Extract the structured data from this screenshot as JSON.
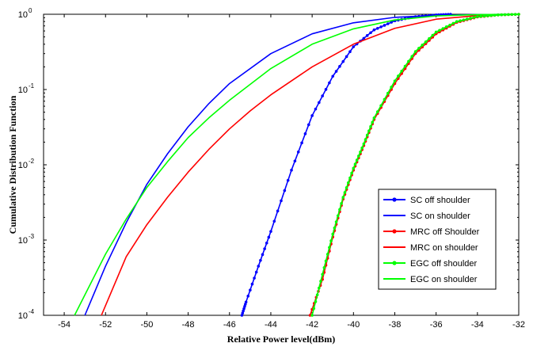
{
  "chart_data": {
    "type": "line",
    "xlabel": "Relative Power level(dBm)",
    "ylabel": "Cumulative Distribution Function",
    "xlim": [
      -55,
      -32
    ],
    "ylim": [
      0.0001,
      1
    ],
    "yscale": "log",
    "x_ticks": [
      -54,
      -52,
      -50,
      -48,
      -46,
      -44,
      -42,
      -40,
      -38,
      -36,
      -34,
      -32
    ],
    "y_ticks": [
      0.0001,
      0.001,
      0.01,
      0.1,
      1
    ],
    "y_tick_labels": [
      {
        "base": "10",
        "exp": "-4"
      },
      {
        "base": "10",
        "exp": "-3"
      },
      {
        "base": "10",
        "exp": "-2"
      },
      {
        "base": "10",
        "exp": "-1"
      },
      {
        "base": "10",
        "exp": "0"
      }
    ],
    "grid": false,
    "legend_position": "lower-right",
    "series": [
      {
        "name": "SC off shoulder",
        "color": "#0000ff",
        "marker": "dot",
        "x": [
          -45.4,
          -45.2,
          -44.6,
          -44.0,
          -43.0,
          -42.0,
          -41.0,
          -40.0,
          -39.0,
          -38.0,
          -37.0,
          -36.0,
          -35.3
        ],
        "y": [
          0.0001,
          0.00015,
          0.00045,
          0.0013,
          0.0085,
          0.045,
          0.15,
          0.37,
          0.62,
          0.82,
          0.93,
          0.98,
          1.0
        ]
      },
      {
        "name": "SC on shoulder",
        "color": "#0000ff",
        "marker": "none",
        "x": [
          -53.0,
          -52.0,
          -51.0,
          -50.0,
          -49.0,
          -48.0,
          -47.0,
          -46.0,
          -44.0,
          -42.0,
          -40.0,
          -38.0,
          -36.0,
          -34.0,
          -32.0
        ],
        "y": [
          0.0001,
          0.00045,
          0.0017,
          0.0055,
          0.014,
          0.032,
          0.065,
          0.12,
          0.3,
          0.55,
          0.77,
          0.91,
          0.97,
          0.99,
          1.0
        ]
      },
      {
        "name": "MRC off Shoulder",
        "color": "#ff0000",
        "marker": "dot",
        "x": [
          -42.1,
          -41.5,
          -41.0,
          -40.5,
          -40.0,
          -39.5,
          -39.0,
          -38.0,
          -37.0,
          -36.0,
          -35.0,
          -34.0,
          -33.0,
          -32.0
        ],
        "y": [
          0.0001,
          0.0003,
          0.0011,
          0.0035,
          0.0085,
          0.018,
          0.04,
          0.12,
          0.3,
          0.55,
          0.78,
          0.92,
          0.98,
          1.0
        ]
      },
      {
        "name": "MRC on shoulder",
        "color": "#ff0000",
        "marker": "none",
        "x": [
          -52.2,
          -51.0,
          -50.0,
          -49.0,
          -48.0,
          -47.0,
          -46.0,
          -45.0,
          -44.0,
          -42.0,
          -40.0,
          -38.0,
          -36.0,
          -34.0,
          -32.0
        ],
        "y": [
          0.0001,
          0.0006,
          0.0016,
          0.0037,
          0.008,
          0.016,
          0.03,
          0.052,
          0.085,
          0.2,
          0.4,
          0.65,
          0.86,
          0.96,
          1.0
        ]
      },
      {
        "name": "EGC off shoulder",
        "color": "#00ff00",
        "marker": "dot",
        "x": [
          -42.0,
          -41.5,
          -41.0,
          -40.5,
          -40.0,
          -39.5,
          -39.0,
          -38.0,
          -37.0,
          -36.0,
          -35.0,
          -34.0,
          -33.0,
          -32.0
        ],
        "y": [
          0.0001,
          0.00035,
          0.0012,
          0.0037,
          0.009,
          0.019,
          0.042,
          0.13,
          0.32,
          0.58,
          0.8,
          0.93,
          0.98,
          1.0
        ]
      },
      {
        "name": "EGC on shoulder",
        "color": "#00ff00",
        "marker": "none",
        "x": [
          -53.5,
          -52.0,
          -51.0,
          -50.0,
          -49.0,
          -48.0,
          -47.0,
          -46.0,
          -44.0,
          -42.0,
          -40.0,
          -38.0,
          -36.0,
          -34.0,
          -32.0
        ],
        "y": [
          0.0001,
          0.00065,
          0.0019,
          0.005,
          0.011,
          0.023,
          0.042,
          0.072,
          0.19,
          0.4,
          0.64,
          0.84,
          0.95,
          0.99,
          1.0
        ]
      }
    ]
  }
}
